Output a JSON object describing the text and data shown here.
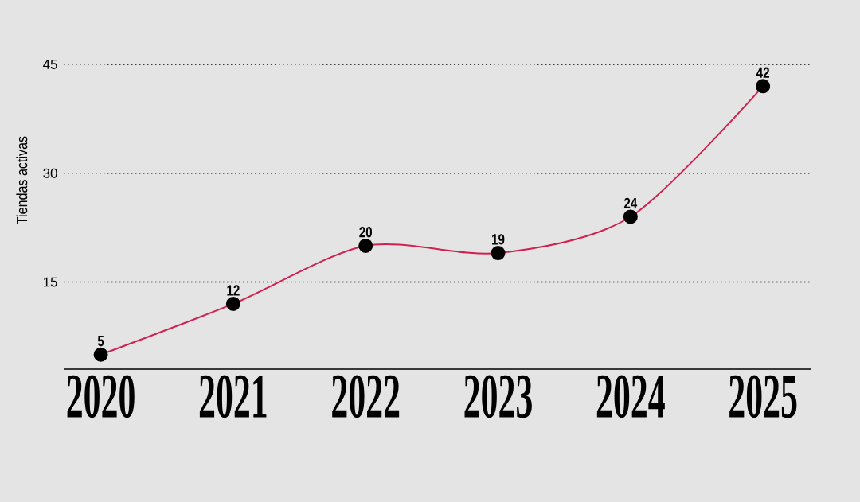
{
  "chart_data": {
    "type": "line",
    "ylabel": "Tiendas activas",
    "categories": [
      "2020",
      "2021",
      "2022",
      "2023",
      "2024",
      "2025"
    ],
    "values": [
      5,
      12,
      20,
      19,
      24,
      42
    ],
    "color": "#d1204f",
    "ylim": [
      3,
      45
    ],
    "yticks": [
      15,
      30,
      45
    ],
    "grid": "y",
    "marker": "circle",
    "line_style": "solid",
    "data_labels": true
  }
}
